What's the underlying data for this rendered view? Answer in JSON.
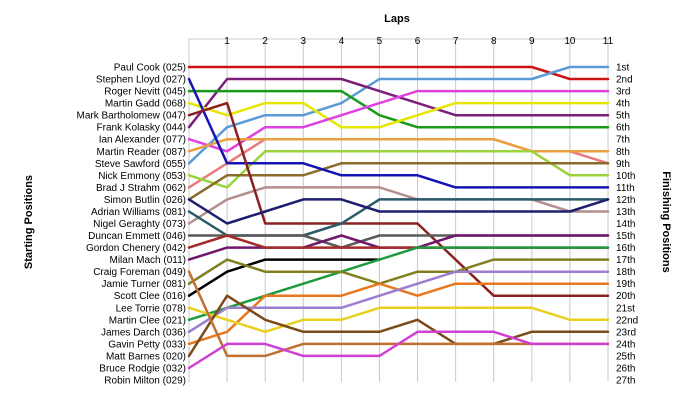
{
  "chart_data": {
    "type": "line",
    "title": "Laps",
    "ylabel_left": "Starting Positions",
    "ylabel_right": "Finishing Positions",
    "x": [
      0,
      1,
      2,
      3,
      4,
      5,
      6,
      7,
      8,
      9,
      10,
      11
    ],
    "x_tick_labels": [
      "1",
      "2",
      "3",
      "4",
      "5",
      "6",
      "7",
      "8",
      "9",
      "10",
      "11"
    ],
    "xlim": [
      0,
      11
    ],
    "ylim": [
      1,
      27
    ],
    "grid": true,
    "starting_labels": [
      "Paul Cook (025)",
      "Stephen Lloyd (027)",
      "Roger Nevitt (045)",
      "Martin Gadd (068)",
      "Mark Bartholomew (047)",
      "Frank Kolasky (044)",
      "Ian Alexander (077)",
      "Martin Reader (087)",
      "Steve Sawford (055)",
      "Nick Emmony (053)",
      "Brad J Strahm (062)",
      "Simon Butlin (026)",
      "Adrian Williams (081)",
      "Nigel Geraghty (073)",
      "Duncan Emmett (046)",
      "Gordon Chenery (042)",
      "Milan Mach (011)",
      "Craig Foreman (049)",
      "Jamie Turner (081)",
      "Scott Clee (016)",
      "Lee Torrie (078)",
      "Martin Clee (021)",
      "James Darch (036)",
      "Gavin Petty (033)",
      "Matt Barnes (020)",
      "Bruce Rodgie (032)",
      "Robin Milton (029)"
    ],
    "finishing_labels": [
      "1st",
      "2nd",
      "3rd",
      "4th",
      "5th",
      "6th",
      "7th",
      "8th",
      "9th",
      "10th",
      "11th",
      "12th",
      "13th",
      "14th",
      "15th",
      "16th",
      "17th",
      "18th",
      "19th",
      "20th",
      "21st",
      "22nd",
      "23rd",
      "24th",
      "25th",
      "26th",
      "27th"
    ],
    "series": [
      {
        "color": "#cc1414",
        "positions": [
          1,
          1,
          1,
          1,
          1,
          1,
          1,
          1,
          1,
          1,
          2,
          2
        ]
      },
      {
        "color": "#5b9bd5",
        "positions": [
          9,
          6,
          5,
          5,
          4,
          2,
          2,
          2,
          2,
          2,
          1,
          1
        ]
      },
      {
        "color": "#7a1f7a",
        "positions": [
          6,
          2,
          2,
          2,
          2,
          3,
          4,
          5,
          5,
          5,
          5,
          5
        ]
      },
      {
        "color": "#1a9a1a",
        "positions": [
          3,
          3,
          3,
          3,
          3,
          5,
          6,
          6,
          6,
          6,
          6,
          6
        ]
      },
      {
        "color": "#e6e600",
        "positions": [
          4,
          5,
          4,
          4,
          6,
          6,
          5,
          4,
          4,
          4,
          4,
          4
        ]
      },
      {
        "color": "#e040e0",
        "positions": [
          7,
          8,
          6,
          6,
          5,
          4,
          3,
          3,
          3,
          3,
          3,
          3
        ]
      },
      {
        "color": "#e87b7b",
        "positions": [
          11,
          9,
          7,
          7,
          7,
          7,
          7,
          7,
          7,
          8,
          8,
          9
        ]
      },
      {
        "color": "#e8a040",
        "positions": [
          8,
          7,
          7,
          7,
          7,
          7,
          7,
          7,
          7,
          8,
          8,
          8
        ]
      },
      {
        "color": "#9ad43a",
        "positions": [
          10,
          11,
          8,
          8,
          8,
          8,
          8,
          8,
          8,
          8,
          10,
          10
        ]
      },
      {
        "color": "#8b6b2b",
        "positions": [
          12,
          10,
          10,
          10,
          9,
          9,
          9,
          9,
          9,
          9,
          9,
          9
        ]
      },
      {
        "color": "#1414b4",
        "positions": [
          2,
          9,
          9,
          9,
          10,
          10,
          10,
          11,
          11,
          11,
          11,
          11
        ]
      },
      {
        "color": "#b48e8e",
        "positions": [
          14,
          12,
          11,
          11,
          11,
          11,
          12,
          12,
          12,
          12,
          13,
          13
        ]
      },
      {
        "color": "#8a2020",
        "positions": [
          5,
          4,
          14,
          14,
          14,
          14,
          14,
          17,
          20,
          20,
          20,
          20
        ]
      },
      {
        "color": "#2b5b6b",
        "positions": [
          13,
          15,
          15,
          15,
          14,
          12,
          12,
          12,
          12,
          12,
          12,
          12
        ]
      },
      {
        "color": "#1e1e6e",
        "positions": [
          12,
          14,
          13,
          12,
          12,
          13,
          13,
          13,
          13,
          13,
          13,
          12
        ]
      },
      {
        "color": "#5a5a5a",
        "positions": [
          15,
          15,
          15,
          15,
          16,
          15,
          15,
          15,
          15,
          15,
          15,
          15
        ]
      },
      {
        "color": "#701870",
        "positions": [
          17,
          16,
          16,
          16,
          15,
          16,
          16,
          15,
          15,
          15,
          15,
          15
        ]
      },
      {
        "color": "#a52a2a",
        "positions": [
          16,
          15,
          16,
          16,
          16,
          16,
          16,
          16,
          16,
          16,
          16,
          16
        ]
      },
      {
        "color": "#000000",
        "positions": [
          20,
          18,
          17,
          17,
          17,
          17
        ]
      },
      {
        "color": "#1f9a3f",
        "positions": [
          22,
          21,
          20,
          19,
          18,
          17,
          16,
          16,
          16,
          16,
          16,
          16
        ]
      },
      {
        "color": "#808020",
        "positions": [
          19,
          17,
          18,
          18,
          18,
          19,
          18,
          18,
          17,
          17,
          17,
          17
        ]
      },
      {
        "color": "#e87820",
        "positions": [
          24,
          23,
          20,
          20,
          20,
          19,
          20,
          19,
          19,
          19,
          19,
          19
        ]
      },
      {
        "color": "#9b7ed0",
        "positions": [
          23,
          21,
          21,
          21,
          21,
          20,
          19,
          18,
          18,
          18,
          18,
          18
        ]
      },
      {
        "color": "#e8d020",
        "positions": [
          21,
          22,
          23,
          22,
          22,
          21,
          21,
          21,
          21,
          21,
          22,
          22
        ]
      },
      {
        "color": "#7b4b1b",
        "positions": [
          25,
          20,
          22,
          23,
          23,
          23,
          22,
          24,
          24,
          23,
          23,
          23
        ]
      },
      {
        "color": "#c07030",
        "positions": [
          18,
          25,
          25,
          24,
          24,
          24,
          24,
          24,
          24,
          24,
          24,
          24
        ]
      },
      {
        "color": "#d040d0",
        "positions": [
          26,
          24,
          24,
          25,
          25,
          25,
          23,
          23,
          23,
          24,
          24,
          24
        ]
      }
    ]
  }
}
